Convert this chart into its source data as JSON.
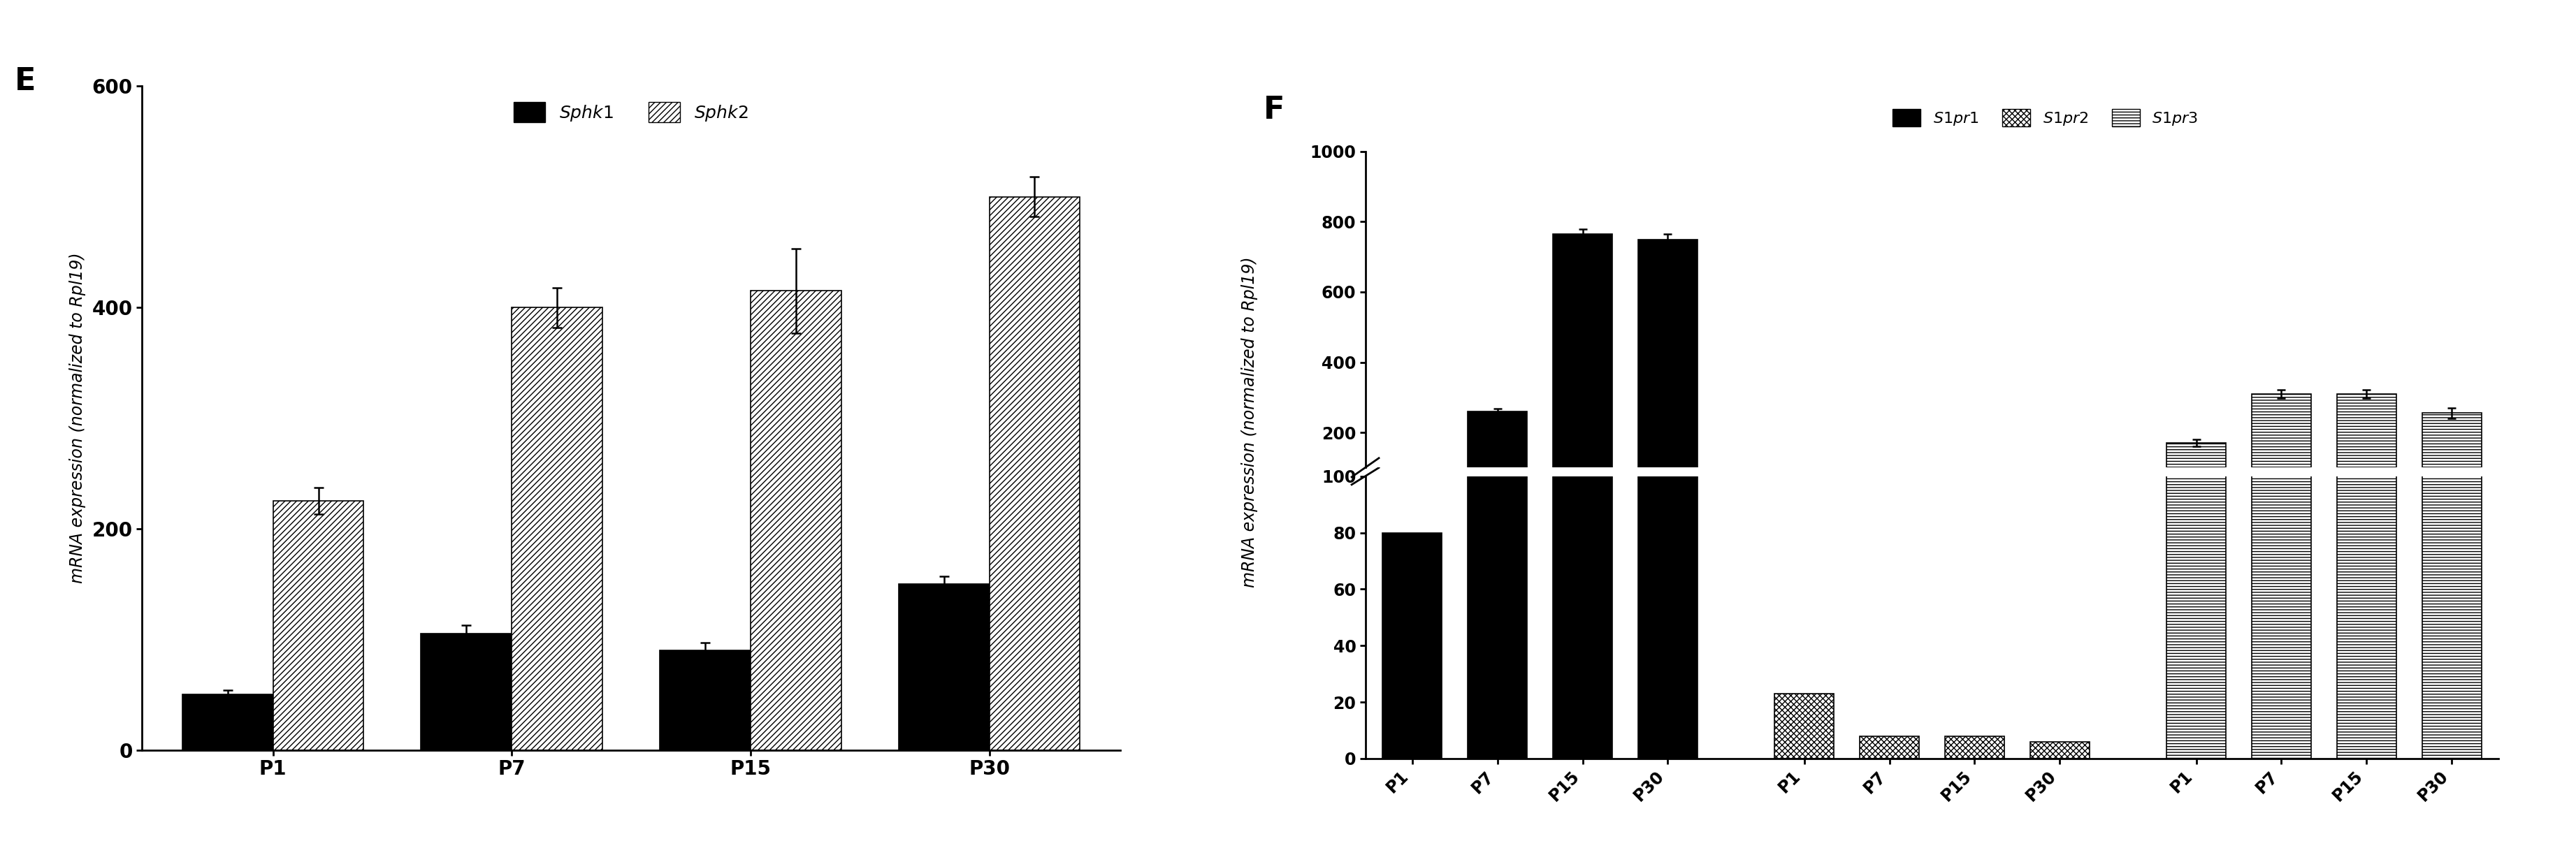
{
  "panel_E": {
    "ylabel": "mRNA expression (normalized to Rpl19)",
    "categories": [
      "P1",
      "P7",
      "P15",
      "P30"
    ],
    "sphk1_values": [
      50,
      105,
      90,
      150
    ],
    "sphk1_errors": [
      4,
      8,
      7,
      7
    ],
    "sphk2_values": [
      225,
      400,
      415,
      500
    ],
    "sphk2_errors": [
      12,
      18,
      38,
      18
    ],
    "ylim": [
      0,
      600
    ],
    "yticks": [
      0,
      200,
      400,
      600
    ]
  },
  "panel_F": {
    "ylabel": "mRNA expression (normalized to Rpl19)",
    "s1pr1_values": [
      80,
      260,
      765,
      750
    ],
    "s1pr1_errors": [
      3,
      8,
      15,
      15
    ],
    "s1pr2_values": [
      23,
      8,
      8,
      6
    ],
    "s1pr2_errors": [
      3,
      2,
      2,
      8
    ],
    "s1pr3_values": [
      170,
      310,
      310,
      255
    ],
    "s1pr3_errors": [
      10,
      12,
      12,
      15
    ],
    "yticks_top": [
      200,
      400,
      600,
      800,
      1000
    ],
    "yticks_bottom": [
      0,
      20,
      40,
      60,
      80,
      100
    ]
  }
}
